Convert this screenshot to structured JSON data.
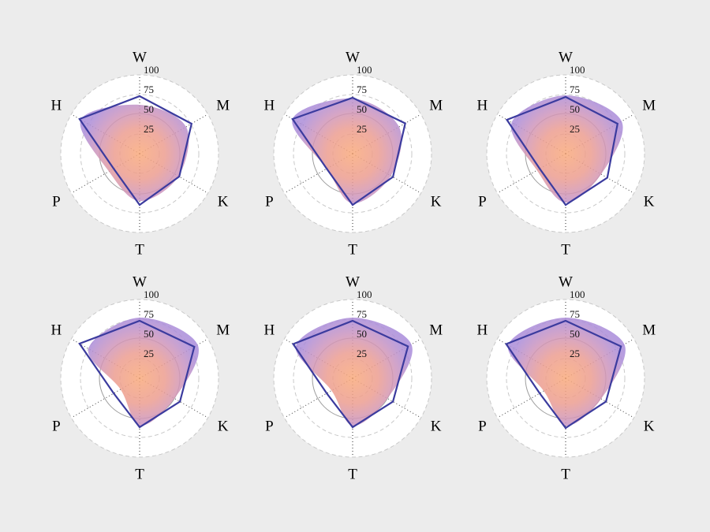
{
  "style": {
    "figure_background": "#ececec",
    "axes_background": "#ffffff",
    "grid_dashed_color": "#c9c9c9",
    "grid_solid_color": "#9e9e9e",
    "spoke_color": "#2a2a2a",
    "line_color": "#3b3b9e",
    "line_width": 2.2,
    "fill_opacity": 0.85,
    "gradient_radius": 92,
    "gradient_stops": [
      [
        "0%",
        "#f9aa7c"
      ],
      [
        "35%",
        "#ec9d90"
      ],
      [
        "60%",
        "#cd95bd"
      ],
      [
        "80%",
        "#ad8dd7"
      ],
      [
        "100%",
        "#a48ade"
      ]
    ],
    "tick_label_color": "#141414",
    "axis_label_color": "#000000",
    "label_radius": 122
  },
  "chart_data": [
    {
      "type": "radar",
      "categories": [
        "W",
        "M",
        "K",
        "T",
        "P",
        "H"
      ],
      "angles_deg": [
        90,
        30,
        -30,
        -90,
        210,
        150
      ],
      "r_max": 100,
      "r_ticks": [
        25,
        50,
        75,
        100
      ],
      "grid": {
        "dashed": [
          25,
          75,
          100
        ],
        "solid": [
          51
        ]
      },
      "series": [
        {
          "name": "profile-area",
          "render": "gradient-area",
          "values": [
            62,
            68,
            57,
            60,
            45,
            86
          ]
        },
        {
          "name": "profile-outline",
          "render": "line",
          "values": [
            73,
            76,
            58,
            65,
            38,
            88
          ]
        }
      ]
    },
    {
      "type": "radar",
      "categories": [
        "W",
        "M",
        "K",
        "T",
        "P",
        "H"
      ],
      "angles_deg": [
        90,
        30,
        -30,
        -90,
        210,
        150
      ],
      "r_max": 100,
      "r_ticks": [
        25,
        50,
        75,
        100
      ],
      "grid": {
        "dashed": [
          25,
          75,
          100
        ],
        "solid": [
          51
        ]
      },
      "series": [
        {
          "name": "profile-area",
          "render": "gradient-area",
          "values": [
            70,
            68,
            56,
            63,
            38,
            88
          ]
        },
        {
          "name": "profile-outline",
          "render": "line",
          "values": [
            71,
            77,
            59,
            65,
            38,
            88
          ]
        }
      ]
    },
    {
      "type": "radar",
      "categories": [
        "W",
        "M",
        "K",
        "T",
        "P",
        "H"
      ],
      "angles_deg": [
        90,
        30,
        -30,
        -90,
        210,
        150
      ],
      "r_max": 100,
      "r_ticks": [
        25,
        50,
        75,
        100
      ],
      "grid": {
        "dashed": [
          25,
          75,
          100
        ],
        "solid": [
          51
        ]
      },
      "series": [
        {
          "name": "profile-area",
          "render": "gradient-area",
          "values": [
            74,
            82,
            52,
            62,
            42,
            79
          ]
        },
        {
          "name": "profile-outline",
          "render": "line",
          "values": [
            72,
            76,
            61,
            65,
            38,
            86
          ]
        }
      ]
    },
    {
      "type": "radar",
      "categories": [
        "W",
        "M",
        "K",
        "T",
        "P",
        "H"
      ],
      "angles_deg": [
        90,
        30,
        -30,
        -90,
        210,
        150
      ],
      "r_max": 100,
      "r_ticks": [
        25,
        50,
        75,
        100
      ],
      "grid": {
        "dashed": [
          25,
          75,
          100
        ],
        "solid": [
          51
        ]
      },
      "series": [
        {
          "name": "profile-area",
          "render": "gradient-area",
          "values": [
            77,
            85,
            51,
            60,
            28,
            75
          ]
        },
        {
          "name": "profile-outline",
          "render": "line",
          "values": [
            73,
            80,
            59,
            62,
            38,
            88
          ]
        }
      ]
    },
    {
      "type": "radar",
      "categories": [
        "W",
        "M",
        "K",
        "T",
        "P",
        "H"
      ],
      "angles_deg": [
        90,
        30,
        -30,
        -90,
        210,
        150
      ],
      "r_max": 100,
      "r_ticks": [
        25,
        50,
        75,
        100
      ],
      "grid": {
        "dashed": [
          25,
          75,
          100
        ],
        "solid": [
          51
        ]
      },
      "series": [
        {
          "name": "profile-area",
          "render": "gradient-area",
          "values": [
            77,
            86,
            51,
            60,
            31,
            83
          ]
        },
        {
          "name": "profile-outline",
          "render": "line",
          "values": [
            73,
            81,
            59,
            62,
            38,
            87
          ]
        }
      ]
    },
    {
      "type": "radar",
      "categories": [
        "W",
        "M",
        "K",
        "T",
        "P",
        "H"
      ],
      "angles_deg": [
        90,
        30,
        -30,
        -90,
        210,
        150
      ],
      "r_max": 100,
      "r_ticks": [
        25,
        50,
        75,
        100
      ],
      "grid": {
        "dashed": [
          25,
          75,
          100
        ],
        "solid": [
          51
        ]
      },
      "series": [
        {
          "name": "profile-area",
          "render": "gradient-area",
          "values": [
            77,
            86,
            52,
            60,
            32,
            84
          ]
        },
        {
          "name": "profile-outline",
          "render": "line",
          "values": [
            73,
            81,
            59,
            63,
            38,
            87
          ]
        }
      ]
    }
  ]
}
